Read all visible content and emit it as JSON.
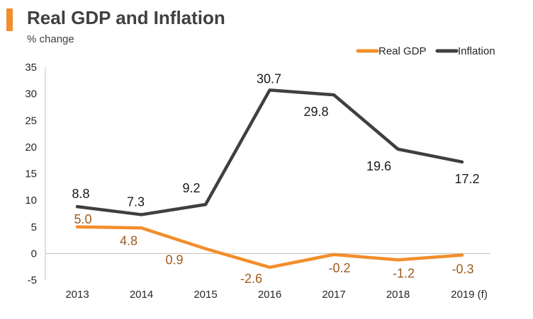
{
  "header": {
    "title": "Real GDP and Inflation",
    "subtitle": "% change"
  },
  "colors": {
    "accent": "#F28E2B",
    "gdp_line": "#F28E2B",
    "gdp_label": "#A05A1E",
    "inflation_line": "#3F3F3F",
    "inflation_label": "#1A1A1A",
    "axis": "#BFBFBF"
  },
  "chart_data": {
    "type": "line",
    "title": "Real GDP and Inflation",
    "ylabel": "% change",
    "xlabel": "",
    "categories": [
      "2013",
      "2014",
      "2015",
      "2016",
      "2017",
      "2018",
      "2019 (f)"
    ],
    "yticks": [
      "35",
      "30",
      "25",
      "20",
      "15",
      "10",
      "5",
      "0",
      "-5"
    ],
    "ylim": [
      -5,
      35
    ],
    "grid": false,
    "legend_position": "top-right",
    "series": [
      {
        "name": "Real GDP",
        "values": [
          5.0,
          4.8,
          0.9,
          -2.6,
          -0.2,
          -1.2,
          -0.3
        ],
        "labels": [
          "5.0",
          "4.8",
          "0.9",
          "-2.6",
          "-0.2",
          "-1.2",
          "-0.3"
        ]
      },
      {
        "name": "Inflation",
        "values": [
          8.8,
          7.3,
          9.2,
          30.7,
          29.8,
          19.6,
          17.2
        ],
        "labels": [
          "8.8",
          "7.3",
          "9.2",
          "30.7",
          "29.8",
          "19.6",
          "17.2"
        ]
      }
    ]
  }
}
